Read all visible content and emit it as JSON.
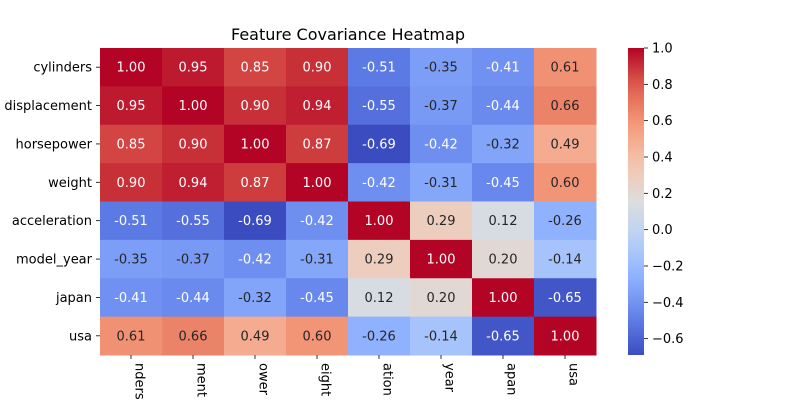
{
  "chart_data": {
    "type": "heatmap",
    "title": "Feature Covariance Heatmap",
    "x_labels": [
      "cylinders",
      "displacement",
      "horsepower",
      "weight",
      "acceleration",
      "model_year",
      "japan",
      "usa"
    ],
    "y_labels": [
      "cylinders",
      "displacement",
      "horsepower",
      "weight",
      "acceleration",
      "model_year",
      "japan",
      "usa"
    ],
    "x_labels_visible": [
      "nders",
      "ment",
      "ower",
      "eight",
      "ation",
      "year",
      "apan",
      "usa"
    ],
    "y_labels_visible": [
      "cylinders",
      "displacement",
      "horsepower",
      "weight",
      "acceleration",
      "model_year",
      "japan",
      "usa"
    ],
    "matrix": [
      [
        1.0,
        0.95,
        0.85,
        0.9,
        -0.51,
        -0.35,
        -0.41,
        0.61
      ],
      [
        0.95,
        1.0,
        0.9,
        0.94,
        -0.55,
        -0.37,
        -0.44,
        0.66
      ],
      [
        0.85,
        0.9,
        1.0,
        0.87,
        -0.69,
        -0.42,
        -0.32,
        0.49
      ],
      [
        0.9,
        0.94,
        0.87,
        1.0,
        -0.42,
        -0.31,
        -0.45,
        0.6
      ],
      [
        -0.51,
        -0.55,
        -0.69,
        -0.42,
        1.0,
        0.29,
        0.12,
        -0.26
      ],
      [
        -0.35,
        -0.37,
        -0.42,
        -0.31,
        0.29,
        1.0,
        0.2,
        -0.14
      ],
      [
        -0.41,
        -0.44,
        -0.32,
        -0.45,
        0.12,
        0.2,
        1.0,
        -0.65
      ],
      [
        0.61,
        0.66,
        0.49,
        0.6,
        -0.26,
        -0.14,
        -0.65,
        1.0
      ]
    ],
    "colormap": "coolwarm",
    "vmin": -0.69,
    "vmax": 1.0,
    "colorbar_ticks": [
      "1.0",
      "0.8",
      "0.6",
      "0.4",
      "0.2",
      "0.0",
      "−0.2",
      "−0.4",
      "−0.6"
    ],
    "colorbar_tick_values": [
      1.0,
      0.8,
      0.6,
      0.4,
      0.2,
      0.0,
      -0.2,
      -0.4,
      -0.6
    ]
  }
}
